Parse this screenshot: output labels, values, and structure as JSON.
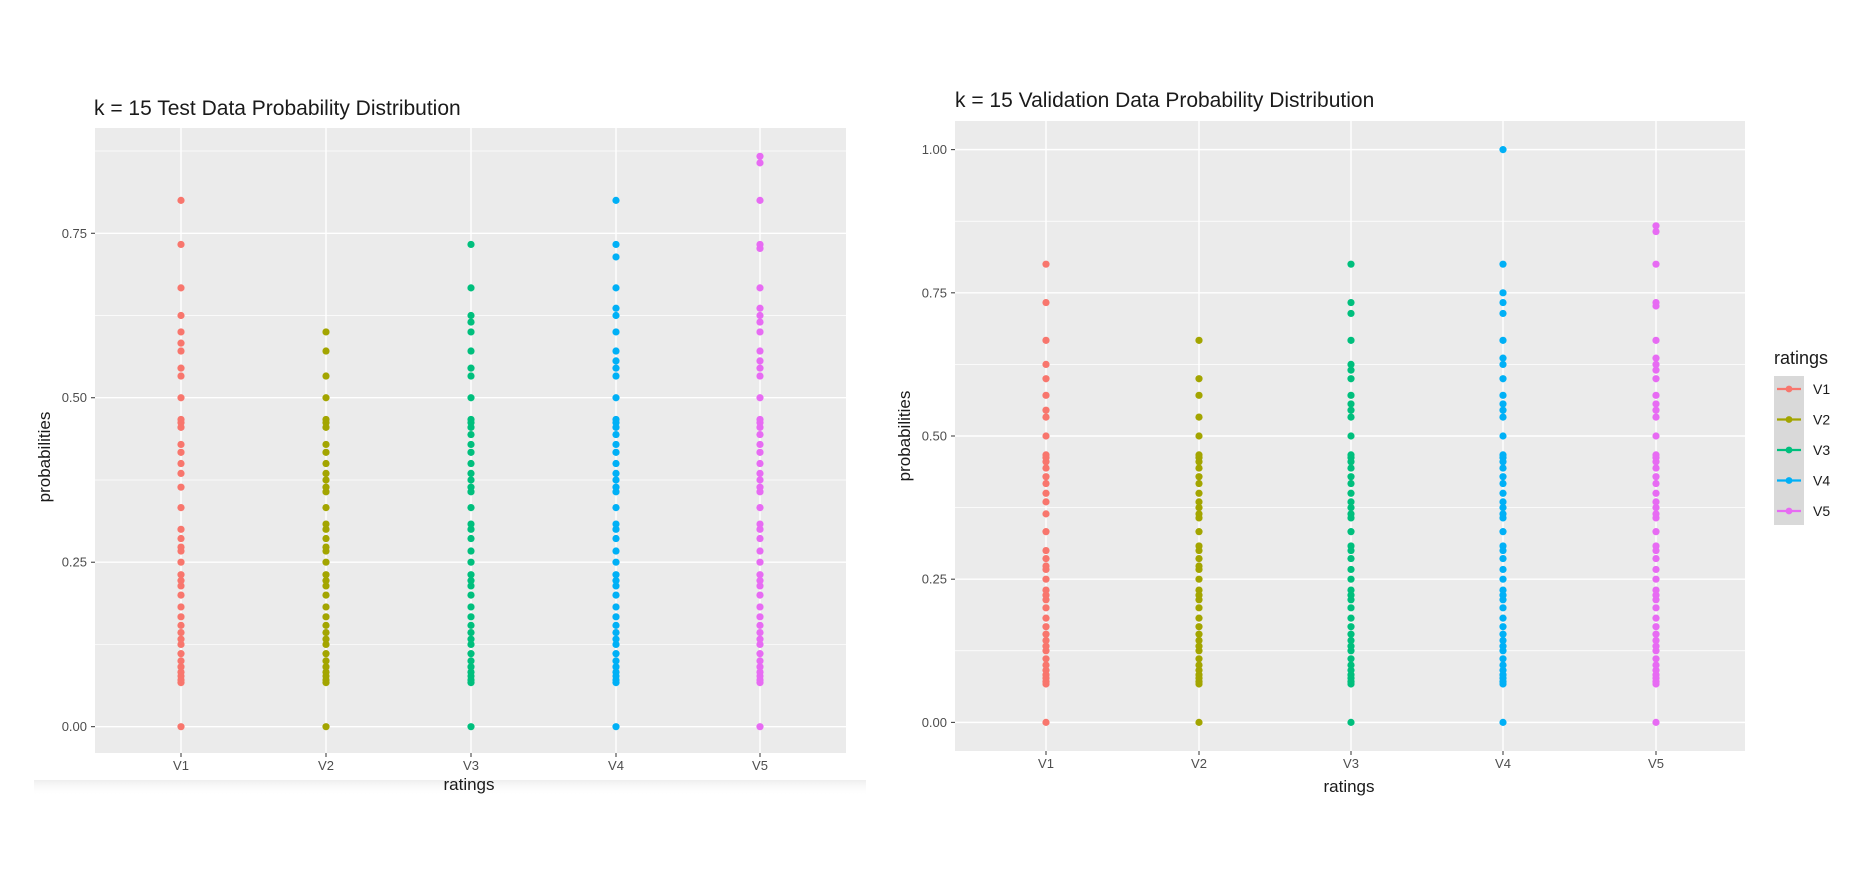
{
  "chart_data": [
    {
      "type": "scatter",
      "title": "k = 15 Test Data Probability Distribution",
      "xlabel": "ratings",
      "ylabel": "probabilities",
      "categories": [
        "V1",
        "V2",
        "V3",
        "V4",
        "V5"
      ],
      "yticks": [
        "0.00",
        "0.25",
        "0.50",
        "0.75"
      ],
      "ylim": [
        -0.04,
        0.91
      ],
      "grid": true,
      "series": [
        {
          "name": "V1",
          "color": "#F8766D",
          "values": [
            0,
            0.067,
            0.071,
            0.077,
            0.083,
            0.091,
            0.1,
            0.111,
            0.125,
            0.133,
            0.143,
            0.154,
            0.167,
            0.182,
            0.2,
            0.214,
            0.222,
            0.231,
            0.25,
            0.267,
            0.273,
            0.286,
            0.3,
            0.333,
            0.364,
            0.385,
            0.4,
            0.417,
            0.429,
            0.455,
            0.462,
            0.467,
            0.5,
            0.533,
            0.545,
            0.571,
            0.583,
            0.6,
            0.625,
            0.667,
            0.733,
            0.8
          ]
        },
        {
          "name": "V2",
          "color": "#A3A500",
          "values": [
            0,
            0.067,
            0.071,
            0.077,
            0.083,
            0.091,
            0.1,
            0.111,
            0.125,
            0.133,
            0.143,
            0.154,
            0.167,
            0.182,
            0.2,
            0.214,
            0.222,
            0.231,
            0.25,
            0.267,
            0.273,
            0.286,
            0.3,
            0.308,
            0.333,
            0.357,
            0.364,
            0.375,
            0.385,
            0.4,
            0.417,
            0.429,
            0.455,
            0.462,
            0.467,
            0.5,
            0.533,
            0.571,
            0.6
          ]
        },
        {
          "name": "V3",
          "color": "#00BF7D",
          "values": [
            0,
            0.067,
            0.071,
            0.077,
            0.083,
            0.091,
            0.1,
            0.111,
            0.125,
            0.133,
            0.143,
            0.154,
            0.167,
            0.182,
            0.2,
            0.214,
            0.222,
            0.231,
            0.25,
            0.267,
            0.286,
            0.3,
            0.308,
            0.333,
            0.357,
            0.364,
            0.375,
            0.385,
            0.4,
            0.417,
            0.429,
            0.444,
            0.455,
            0.462,
            0.467,
            0.5,
            0.533,
            0.545,
            0.571,
            0.6,
            0.615,
            0.625,
            0.667,
            0.733
          ]
        },
        {
          "name": "V4",
          "color": "#00B0F6",
          "values": [
            0,
            0.067,
            0.071,
            0.077,
            0.083,
            0.091,
            0.1,
            0.111,
            0.125,
            0.133,
            0.143,
            0.154,
            0.167,
            0.182,
            0.2,
            0.214,
            0.222,
            0.231,
            0.25,
            0.267,
            0.286,
            0.3,
            0.308,
            0.333,
            0.357,
            0.364,
            0.375,
            0.385,
            0.4,
            0.417,
            0.429,
            0.444,
            0.455,
            0.462,
            0.467,
            0.5,
            0.533,
            0.545,
            0.556,
            0.571,
            0.6,
            0.625,
            0.636,
            0.667,
            0.714,
            0.733,
            0.8
          ]
        },
        {
          "name": "V5",
          "color": "#E76BF3",
          "values": [
            0,
            0.067,
            0.071,
            0.077,
            0.083,
            0.091,
            0.1,
            0.111,
            0.125,
            0.133,
            0.143,
            0.154,
            0.167,
            0.182,
            0.2,
            0.214,
            0.222,
            0.231,
            0.25,
            0.267,
            0.286,
            0.3,
            0.308,
            0.333,
            0.357,
            0.364,
            0.375,
            0.385,
            0.4,
            0.417,
            0.429,
            0.444,
            0.455,
            0.462,
            0.467,
            0.5,
            0.533,
            0.545,
            0.556,
            0.571,
            0.6,
            0.615,
            0.625,
            0.636,
            0.667,
            0.727,
            0.733,
            0.8,
            0.857,
            0.867
          ]
        }
      ]
    },
    {
      "type": "scatter",
      "title": "k = 15 Validation Data Probability Distribution",
      "xlabel": "ratings",
      "ylabel": "probabilities",
      "categories": [
        "V1",
        "V2",
        "V3",
        "V4",
        "V5"
      ],
      "yticks": [
        "0.00",
        "0.25",
        "0.50",
        "0.75",
        "1.00"
      ],
      "ylim": [
        -0.05,
        1.05
      ],
      "grid": true,
      "legend": {
        "title": "ratings",
        "position": "right",
        "entries": [
          "V1",
          "V2",
          "V3",
          "V4",
          "V5"
        ]
      },
      "series": [
        {
          "name": "V1",
          "color": "#F8766D",
          "values": [
            0,
            0.067,
            0.071,
            0.077,
            0.083,
            0.091,
            0.1,
            0.111,
            0.125,
            0.133,
            0.143,
            0.154,
            0.167,
            0.182,
            0.2,
            0.214,
            0.222,
            0.231,
            0.25,
            0.267,
            0.273,
            0.286,
            0.3,
            0.333,
            0.364,
            0.385,
            0.4,
            0.417,
            0.429,
            0.444,
            0.455,
            0.462,
            0.467,
            0.5,
            0.533,
            0.545,
            0.571,
            0.6,
            0.625,
            0.667,
            0.733,
            0.8
          ]
        },
        {
          "name": "V2",
          "color": "#A3A500",
          "values": [
            0,
            0.067,
            0.071,
            0.077,
            0.083,
            0.091,
            0.1,
            0.111,
            0.125,
            0.133,
            0.143,
            0.154,
            0.167,
            0.182,
            0.2,
            0.214,
            0.222,
            0.231,
            0.25,
            0.267,
            0.273,
            0.286,
            0.3,
            0.308,
            0.333,
            0.357,
            0.364,
            0.375,
            0.385,
            0.4,
            0.417,
            0.429,
            0.444,
            0.455,
            0.462,
            0.467,
            0.5,
            0.533,
            0.571,
            0.6,
            0.667
          ]
        },
        {
          "name": "V3",
          "color": "#00BF7D",
          "values": [
            0,
            0.067,
            0.071,
            0.077,
            0.083,
            0.091,
            0.1,
            0.111,
            0.125,
            0.133,
            0.143,
            0.154,
            0.167,
            0.182,
            0.2,
            0.214,
            0.222,
            0.231,
            0.25,
            0.267,
            0.286,
            0.3,
            0.308,
            0.333,
            0.357,
            0.364,
            0.375,
            0.385,
            0.4,
            0.417,
            0.429,
            0.444,
            0.455,
            0.462,
            0.467,
            0.5,
            0.533,
            0.545,
            0.556,
            0.571,
            0.6,
            0.615,
            0.625,
            0.667,
            0.714,
            0.733,
            0.8
          ]
        },
        {
          "name": "V4",
          "color": "#00B0F6",
          "values": [
            0,
            0.067,
            0.071,
            0.077,
            0.083,
            0.091,
            0.1,
            0.111,
            0.125,
            0.133,
            0.143,
            0.154,
            0.167,
            0.182,
            0.2,
            0.214,
            0.222,
            0.231,
            0.25,
            0.267,
            0.286,
            0.3,
            0.308,
            0.333,
            0.357,
            0.364,
            0.375,
            0.385,
            0.4,
            0.417,
            0.429,
            0.444,
            0.455,
            0.462,
            0.467,
            0.5,
            0.533,
            0.545,
            0.556,
            0.571,
            0.6,
            0.625,
            0.636,
            0.667,
            0.714,
            0.733,
            0.75,
            0.8,
            1.0
          ]
        },
        {
          "name": "V5",
          "color": "#E76BF3",
          "values": [
            0,
            0.067,
            0.071,
            0.077,
            0.083,
            0.091,
            0.1,
            0.111,
            0.125,
            0.133,
            0.143,
            0.154,
            0.167,
            0.182,
            0.2,
            0.214,
            0.222,
            0.231,
            0.25,
            0.267,
            0.286,
            0.3,
            0.308,
            0.333,
            0.357,
            0.364,
            0.375,
            0.385,
            0.4,
            0.417,
            0.429,
            0.444,
            0.455,
            0.462,
            0.467,
            0.5,
            0.533,
            0.545,
            0.556,
            0.571,
            0.6,
            0.615,
            0.625,
            0.636,
            0.667,
            0.727,
            0.733,
            0.8,
            0.857,
            0.867
          ]
        }
      ]
    }
  ]
}
